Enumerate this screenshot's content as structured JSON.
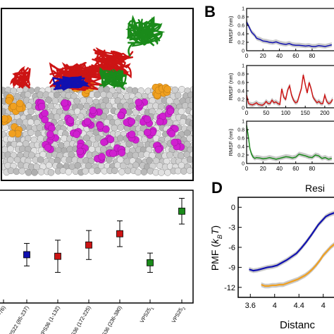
{
  "panels": {
    "b": "B",
    "d": "D"
  },
  "colors": {
    "blue": "#1010b0",
    "red": "#cc1414",
    "green": "#1a8a1a",
    "orange": "#f0a020",
    "magenta": "#d020d0",
    "grey_band": "#bdbdbd"
  },
  "chart_data": [
    {
      "id": "A",
      "type": "other",
      "description_visible_only": "molecular rendering of protein complex on lipid membrane"
    },
    {
      "id": "B",
      "type": "line",
      "ylabel": "RMSF (nm)",
      "xlabel": "Resi",
      "subplots": [
        {
          "color": "#1010b0",
          "ylim": [
            0,
            1
          ],
          "yticks": [
            "0",
            "0.2",
            "0.4",
            "0.6",
            "0.8",
            "1"
          ],
          "xticks": [
            "0",
            "20",
            "40",
            "60",
            "80"
          ],
          "xlim": [
            0,
            105
          ],
          "x": [
            0,
            2,
            4,
            6,
            8,
            10,
            12,
            14,
            16,
            18,
            20,
            24,
            28,
            32,
            36,
            40,
            44,
            48,
            52,
            56,
            60,
            64,
            68,
            72,
            76,
            80,
            84,
            88,
            92,
            96,
            100,
            104
          ],
          "y": [
            0.68,
            0.6,
            0.52,
            0.44,
            0.4,
            0.36,
            0.3,
            0.28,
            0.27,
            0.25,
            0.23,
            0.22,
            0.2,
            0.19,
            0.21,
            0.18,
            0.16,
            0.15,
            0.17,
            0.14,
            0.13,
            0.13,
            0.12,
            0.11,
            0.12,
            0.1,
            0.1,
            0.12,
            0.11,
            0.1,
            0.12,
            0.14
          ]
        },
        {
          "color": "#cc1414",
          "ylim": [
            0,
            1
          ],
          "yticks": [
            "0",
            "0.2",
            "0.4",
            "0.6",
            "0.8",
            "1"
          ],
          "xticks": [
            "0",
            "50",
            "100",
            "150",
            "200"
          ],
          "xlim": [
            0,
            220
          ],
          "x": [
            0,
            5,
            10,
            15,
            20,
            25,
            30,
            35,
            40,
            45,
            50,
            55,
            60,
            65,
            70,
            75,
            80,
            85,
            90,
            95,
            100,
            105,
            110,
            115,
            120,
            125,
            130,
            135,
            140,
            145,
            150,
            155,
            160,
            165,
            170,
            175,
            180,
            185,
            190,
            195,
            200,
            205,
            210,
            215,
            220
          ],
          "y": [
            0.3,
            0.1,
            0.08,
            0.07,
            0.09,
            0.12,
            0.08,
            0.07,
            0.06,
            0.09,
            0.15,
            0.1,
            0.1,
            0.18,
            0.12,
            0.14,
            0.1,
            0.08,
            0.45,
            0.25,
            0.2,
            0.42,
            0.52,
            0.3,
            0.18,
            0.12,
            0.14,
            0.3,
            0.45,
            0.78,
            0.55,
            0.35,
            0.6,
            0.45,
            0.25,
            0.18,
            0.12,
            0.15,
            0.1,
            0.1,
            0.3,
            0.15,
            0.1,
            0.12,
            0.2
          ]
        },
        {
          "color": "#1a8a1a",
          "ylim": [
            0,
            1
          ],
          "yticks": [
            "0",
            "0.2",
            "0.4",
            "0.6",
            "0.8",
            "1"
          ],
          "xticks": [
            "0",
            "20",
            "40",
            "60",
            "80"
          ],
          "xlim": [
            0,
            105
          ],
          "x": [
            0,
            2,
            4,
            6,
            8,
            10,
            12,
            16,
            20,
            24,
            28,
            32,
            36,
            40,
            44,
            48,
            52,
            56,
            60,
            64,
            68,
            72,
            76,
            80,
            84,
            88,
            92,
            96,
            100,
            104
          ],
          "y": [
            0.9,
            0.65,
            0.35,
            0.22,
            0.15,
            0.12,
            0.14,
            0.13,
            0.11,
            0.12,
            0.14,
            0.12,
            0.1,
            0.12,
            0.14,
            0.16,
            0.15,
            0.13,
            0.15,
            0.22,
            0.2,
            0.18,
            0.15,
            0.14,
            0.2,
            0.18,
            0.12,
            0.14,
            0.1,
            0.12
          ]
        }
      ]
    },
    {
      "id": "C",
      "type": "scatter",
      "categories": [
        "-76)",
        "VPS22 (85-237)",
        "VPS36 (1-132)",
        "VPS36 (172-225)",
        "VPS36 (236-380)",
        "VPS25",
        "VPS25"
      ],
      "subscripts": [
        "",
        "",
        "",
        "",
        "",
        "1",
        "2"
      ],
      "colors": [
        "#1010b0",
        "#1010b0",
        "#cc1414",
        "#cc1414",
        "#cc1414",
        "#1a8a1a",
        "#1a8a1a"
      ],
      "values": [
        null,
        0.0,
        -0.2,
        1.2,
        2.6,
        -1.0,
        5.4
      ],
      "err": [
        null,
        1.4,
        2.0,
        1.8,
        1.6,
        1.2,
        1.6
      ],
      "ylim": [
        -6,
        8
      ]
    },
    {
      "id": "D",
      "type": "line",
      "ylabel": "PMF (",
      "ylabel_var": "k",
      "ylabel_sub": "B",
      "ylabel_var2": "T",
      "ylabel_end": ")",
      "xlabel": "Distanc",
      "xlim": [
        3.4,
        5.0
      ],
      "ylim": [
        -13.5,
        1.5
      ],
      "xticks": [
        3.6,
        4.0,
        4.4,
        4.8
      ],
      "xtick_labels": [
        "3.6",
        "4",
        "4.4",
        "4"
      ],
      "yticks": [
        0,
        -3,
        -6,
        -9,
        -12
      ],
      "ytick_labels": [
        "0",
        "-3",
        "-6",
        "-9",
        "-12"
      ],
      "series": [
        {
          "color": "#1010b0",
          "x": [
            3.58,
            3.65,
            3.72,
            3.8,
            3.88,
            3.96,
            4.04,
            4.12,
            4.2,
            4.28,
            4.36,
            4.44,
            4.52,
            4.6,
            4.66,
            4.72,
            4.78,
            4.84,
            4.9,
            4.96,
            5.0
          ],
          "y": [
            -9.3,
            -9.5,
            -9.4,
            -9.2,
            -9.0,
            -8.9,
            -8.7,
            -8.3,
            -7.9,
            -7.4,
            -6.9,
            -6.1,
            -5.2,
            -4.2,
            -3.4,
            -2.6,
            -2.0,
            -1.4,
            -1.1,
            -0.9,
            -0.8
          ]
        },
        {
          "color": "#f0a020",
          "x": [
            3.78,
            3.84,
            3.9,
            3.96,
            4.02,
            4.08,
            4.14,
            4.2,
            4.26,
            4.32,
            4.38,
            4.44,
            4.5,
            4.56,
            4.62,
            4.68,
            4.74,
            4.8,
            4.86,
            4.92,
            5.0
          ],
          "y": [
            -11.6,
            -11.8,
            -11.8,
            -11.7,
            -11.7,
            -11.6,
            -11.6,
            -11.4,
            -11.2,
            -11.0,
            -10.8,
            -10.5,
            -10.2,
            -9.8,
            -9.3,
            -8.7,
            -8.0,
            -7.2,
            -6.6,
            -6.0,
            -5.4
          ]
        }
      ]
    }
  ]
}
